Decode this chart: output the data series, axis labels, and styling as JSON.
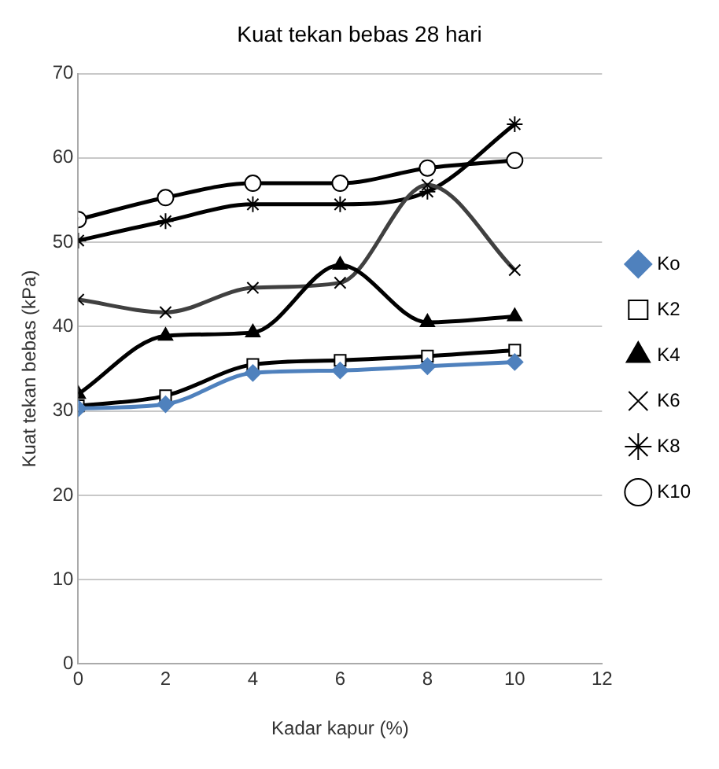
{
  "chart_data": {
    "type": "line",
    "title": "Kuat tekan bebas 28 hari",
    "xlabel": "Kadar kapur (%)",
    "ylabel": "Kuat tekan bebas (kPa)",
    "x": [
      0,
      2,
      4,
      6,
      8,
      10
    ],
    "xlim": [
      0,
      12
    ],
    "xticks": [
      0,
      2,
      4,
      6,
      8,
      10,
      12
    ],
    "ylim": [
      0,
      70
    ],
    "yticks": [
      0,
      10,
      20,
      30,
      40,
      50,
      60,
      70
    ],
    "grid": "y",
    "legend": "right",
    "series": [
      {
        "name": "Ko",
        "color": "#4f81bd",
        "marker": "diamond",
        "values": [
          30.3,
          30.8,
          34.5,
          34.8,
          35.3,
          35.8
        ]
      },
      {
        "name": "K2",
        "color": "#000000",
        "marker": "square",
        "values": [
          30.6,
          31.8,
          35.5,
          36,
          36.5,
          37.2
        ]
      },
      {
        "name": "K4",
        "color": "#000000",
        "marker": "triangle",
        "values": [
          32,
          38.9,
          39.3,
          47.3,
          40.5,
          41.2
        ]
      },
      {
        "name": "K6",
        "color": "#404040",
        "marker": "cross",
        "values": [
          43.2,
          41.7,
          44.6,
          45.2,
          56.8,
          46.7
        ]
      },
      {
        "name": "K8",
        "color": "#000000",
        "marker": "cross",
        "values": [
          50.2,
          52.5,
          54.5,
          54.5,
          56,
          64
        ]
      },
      {
        "name": "K10",
        "color": "#000000",
        "marker": "circle",
        "values": [
          52.7,
          55.3,
          57,
          57,
          58.8,
          59.7
        ]
      }
    ]
  }
}
